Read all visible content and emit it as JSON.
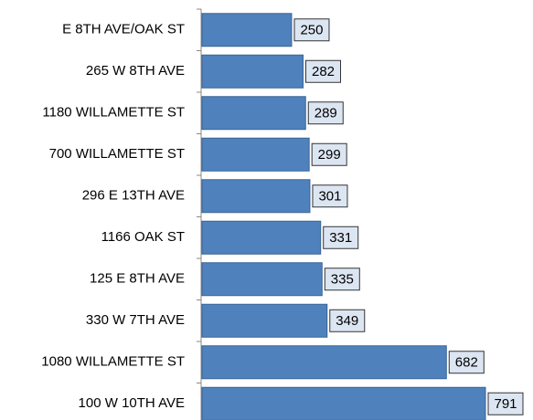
{
  "chart_data": {
    "type": "bar",
    "orientation": "horizontal",
    "categories": [
      "E 8TH AVE/OAK ST",
      "265 W 8TH AVE",
      "1180 WILLAMETTE ST",
      "700 WILLAMETTE ST",
      "296 E 13TH AVE",
      "1166 OAK ST",
      "125 E 8TH AVE",
      "330 W 7TH AVE",
      "1080 WILLAMETTE ST",
      "100 W 10TH AVE"
    ],
    "values": [
      250,
      282,
      289,
      299,
      301,
      331,
      335,
      349,
      682,
      791
    ],
    "color": "#4f81bd",
    "label_fill": "#dce6f2"
  }
}
